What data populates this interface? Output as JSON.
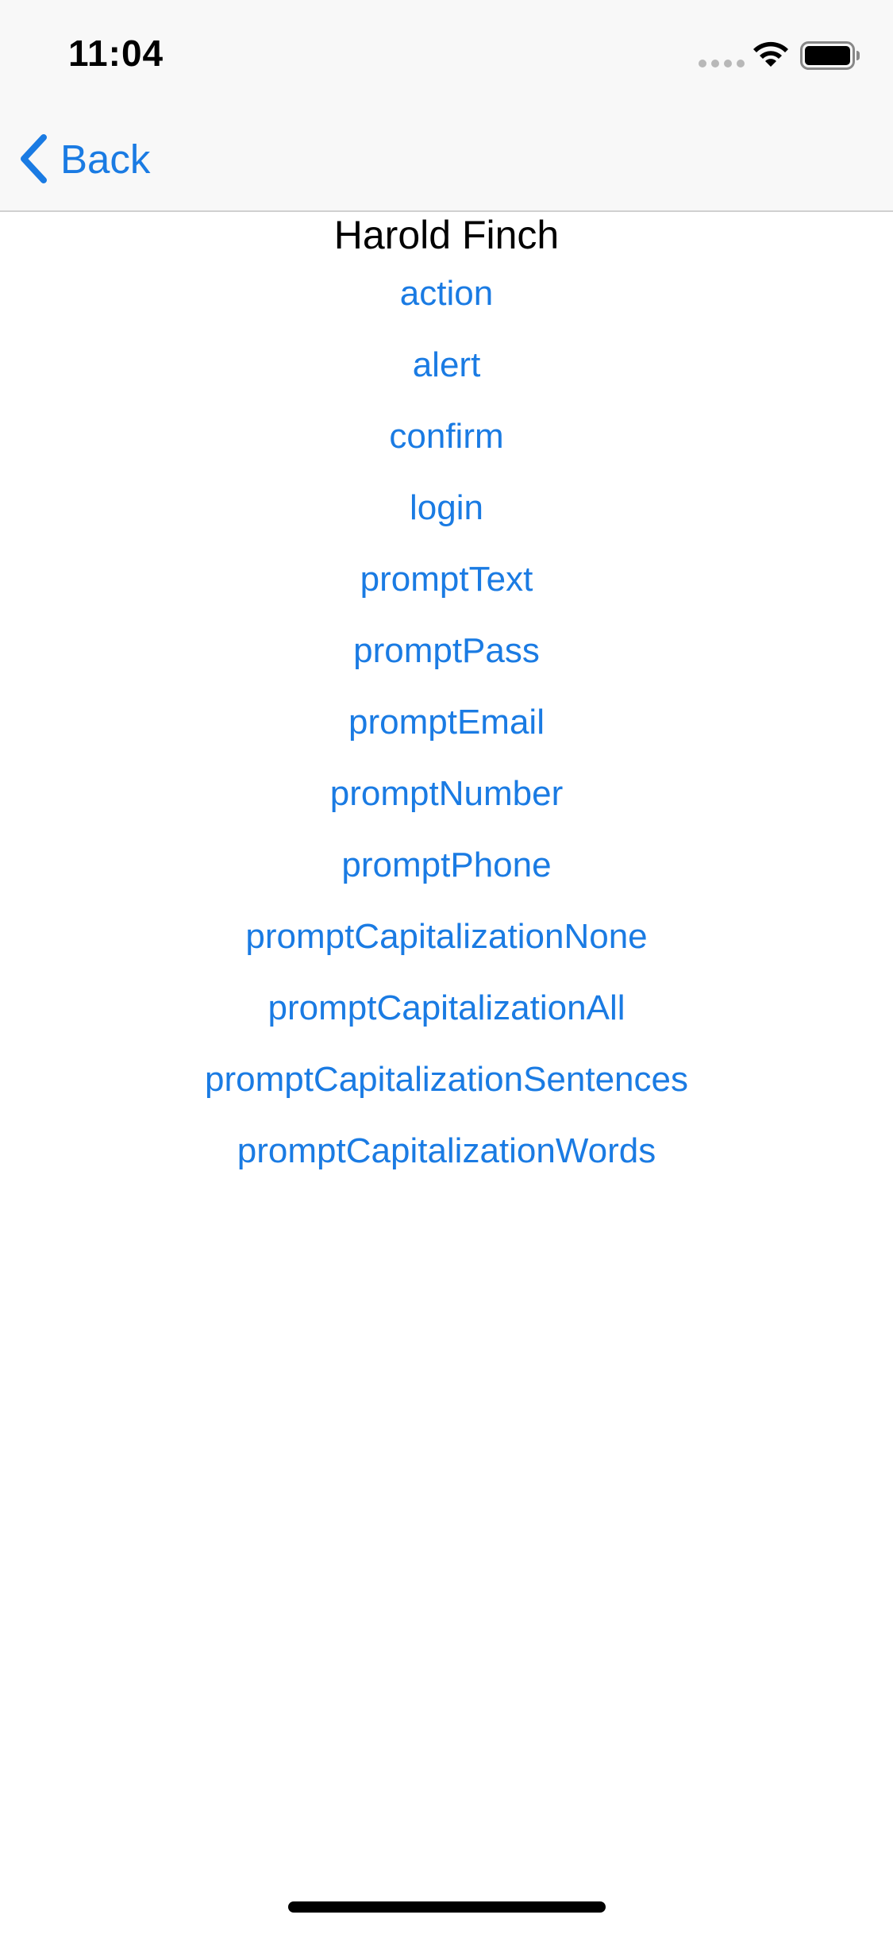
{
  "status_bar": {
    "time": "11:04",
    "icons": [
      "cellular-signal-icon",
      "wifi-icon",
      "battery-icon"
    ]
  },
  "nav_bar": {
    "back_label": "Back",
    "back_icon": "chevron-left-icon"
  },
  "page": {
    "title": "Harold Finch"
  },
  "actions": [
    "action",
    "alert",
    "confirm",
    "login",
    "promptText",
    "promptPass",
    "promptEmail",
    "promptNumber",
    "promptPhone",
    "promptCapitalizationNone",
    "promptCapitalizationAll",
    "promptCapitalizationSentences",
    "promptCapitalizationWords"
  ],
  "colors": {
    "accent": "#1a7be3",
    "nav_background": "#f8f8f8",
    "text": "#000000"
  }
}
